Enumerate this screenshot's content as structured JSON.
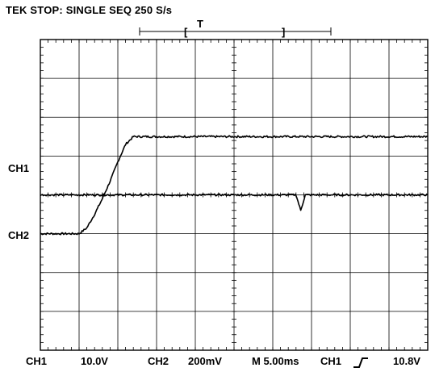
{
  "header": {
    "status": "TEK STOP: SINGLE SEQ 250 S/s",
    "trigger_marker": "T"
  },
  "channels": {
    "ch1_label": "CH1",
    "ch2_label": "CH2"
  },
  "readout": {
    "ch1_name": "CH1",
    "ch1_scale": "10.0V",
    "ch2_name": "CH2",
    "ch2_scale": "200mV",
    "timebase": "M 5.00ms",
    "trigger_source": "CH1",
    "trigger_slope_icon": "rising-edge-icon",
    "trigger_level": "10.8V"
  },
  "chart_data": {
    "type": "line",
    "grid": true,
    "x_divisions": 10,
    "y_divisions": 8,
    "xlim": [
      0,
      50
    ],
    "x_unit": "ms",
    "series": [
      {
        "name": "CH1",
        "units": "div",
        "x": [
          0,
          3,
          5,
          6,
          7,
          8,
          9,
          10,
          11,
          12,
          15,
          20,
          25,
          30,
          35,
          40,
          45,
          50
        ],
        "values": [
          -1.0,
          -1.0,
          -1.0,
          -0.85,
          -0.5,
          -0.1,
          0.35,
          0.85,
          1.3,
          1.5,
          1.5,
          1.5,
          1.5,
          1.5,
          1.5,
          1.5,
          1.5,
          1.5
        ]
      },
      {
        "name": "CH2",
        "units": "div",
        "x": [
          0,
          5,
          10,
          15,
          20,
          25,
          30,
          33,
          33.6,
          34.2,
          35,
          40,
          45,
          50
        ],
        "values": [
          0,
          0,
          0,
          0,
          0,
          0,
          0,
          0,
          -0.4,
          0,
          0,
          0,
          0,
          0
        ]
      }
    ],
    "ch1_ground_div": 0.5,
    "ch2_ground_div": -0.5
  }
}
